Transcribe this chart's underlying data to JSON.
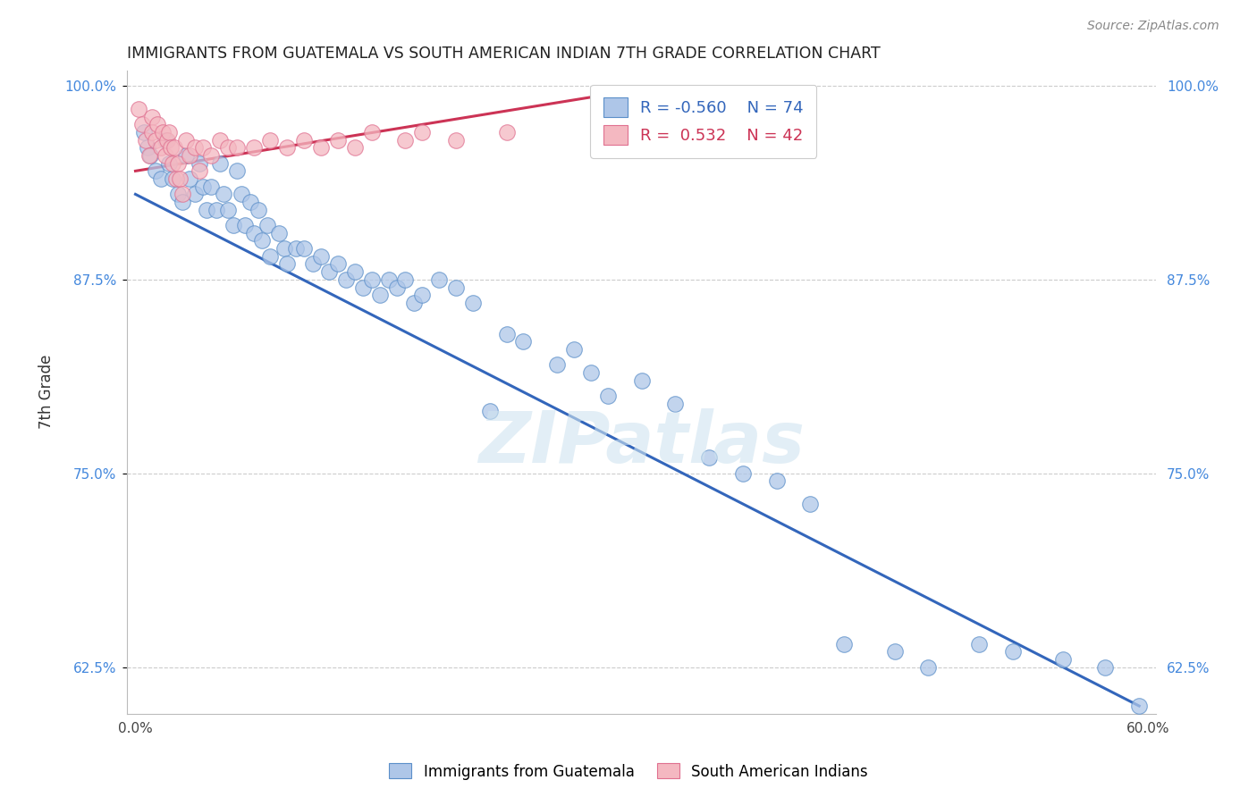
{
  "title": "IMMIGRANTS FROM GUATEMALA VS SOUTH AMERICAN INDIAN 7TH GRADE CORRELATION CHART",
  "source": "Source: ZipAtlas.com",
  "ylabel": "7th Grade",
  "xlabel": "",
  "xlim": [
    -0.005,
    0.605
  ],
  "ylim": [
    0.595,
    1.01
  ],
  "yticks": [
    0.625,
    0.75,
    0.875,
    1.0
  ],
  "ytick_labels": [
    "62.5%",
    "75.0%",
    "87.5%",
    "100.0%"
  ],
  "xticks": [
    0.0,
    0.1,
    0.2,
    0.3,
    0.4,
    0.5,
    0.6
  ],
  "xtick_labels": [
    "0.0%",
    "",
    "",
    "",
    "",
    "",
    "60.0%"
  ],
  "blue_r": -0.56,
  "blue_n": 74,
  "pink_r": 0.532,
  "pink_n": 42,
  "blue_color": "#aec6e8",
  "pink_color": "#f4b8c1",
  "blue_edge_color": "#5b8fc9",
  "pink_edge_color": "#e07090",
  "blue_line_color": "#3366bb",
  "pink_line_color": "#cc3355",
  "watermark": "ZIPatlas",
  "blue_scatter_x": [
    0.005,
    0.007,
    0.009,
    0.012,
    0.015,
    0.018,
    0.02,
    0.022,
    0.025,
    0.028,
    0.03,
    0.032,
    0.035,
    0.038,
    0.04,
    0.042,
    0.045,
    0.048,
    0.05,
    0.052,
    0.055,
    0.058,
    0.06,
    0.063,
    0.065,
    0.068,
    0.07,
    0.073,
    0.075,
    0.078,
    0.08,
    0.085,
    0.088,
    0.09,
    0.095,
    0.1,
    0.105,
    0.11,
    0.115,
    0.12,
    0.125,
    0.13,
    0.135,
    0.14,
    0.145,
    0.15,
    0.155,
    0.16,
    0.165,
    0.17,
    0.18,
    0.19,
    0.2,
    0.21,
    0.22,
    0.23,
    0.25,
    0.26,
    0.27,
    0.28,
    0.3,
    0.32,
    0.34,
    0.36,
    0.38,
    0.4,
    0.42,
    0.45,
    0.47,
    0.5,
    0.52,
    0.55,
    0.575,
    0.595
  ],
  "blue_scatter_y": [
    0.97,
    0.96,
    0.955,
    0.945,
    0.94,
    0.965,
    0.95,
    0.94,
    0.93,
    0.925,
    0.955,
    0.94,
    0.93,
    0.95,
    0.935,
    0.92,
    0.935,
    0.92,
    0.95,
    0.93,
    0.92,
    0.91,
    0.945,
    0.93,
    0.91,
    0.925,
    0.905,
    0.92,
    0.9,
    0.91,
    0.89,
    0.905,
    0.895,
    0.885,
    0.895,
    0.895,
    0.885,
    0.89,
    0.88,
    0.885,
    0.875,
    0.88,
    0.87,
    0.875,
    0.865,
    0.875,
    0.87,
    0.875,
    0.86,
    0.865,
    0.875,
    0.87,
    0.86,
    0.79,
    0.84,
    0.835,
    0.82,
    0.83,
    0.815,
    0.8,
    0.81,
    0.795,
    0.76,
    0.75,
    0.745,
    0.73,
    0.64,
    0.635,
    0.625,
    0.64,
    0.635,
    0.63,
    0.625,
    0.6
  ],
  "pink_scatter_x": [
    0.002,
    0.004,
    0.006,
    0.008,
    0.01,
    0.01,
    0.012,
    0.013,
    0.015,
    0.016,
    0.018,
    0.019,
    0.02,
    0.021,
    0.022,
    0.023,
    0.024,
    0.025,
    0.026,
    0.028,
    0.03,
    0.032,
    0.035,
    0.038,
    0.04,
    0.045,
    0.05,
    0.055,
    0.06,
    0.07,
    0.08,
    0.09,
    0.1,
    0.11,
    0.12,
    0.13,
    0.14,
    0.16,
    0.17,
    0.19,
    0.22,
    0.28
  ],
  "pink_scatter_y": [
    0.985,
    0.975,
    0.965,
    0.955,
    0.98,
    0.97,
    0.965,
    0.975,
    0.96,
    0.97,
    0.955,
    0.965,
    0.97,
    0.96,
    0.95,
    0.96,
    0.94,
    0.95,
    0.94,
    0.93,
    0.965,
    0.955,
    0.96,
    0.945,
    0.96,
    0.955,
    0.965,
    0.96,
    0.96,
    0.96,
    0.965,
    0.96,
    0.965,
    0.96,
    0.965,
    0.96,
    0.97,
    0.965,
    0.97,
    0.965,
    0.97,
    0.995
  ],
  "blue_trendline_x": [
    0.0,
    0.595
  ],
  "blue_trendline_y": [
    0.93,
    0.6
  ],
  "pink_trendline_x": [
    0.0,
    0.295
  ],
  "pink_trendline_y": [
    0.945,
    0.997
  ]
}
